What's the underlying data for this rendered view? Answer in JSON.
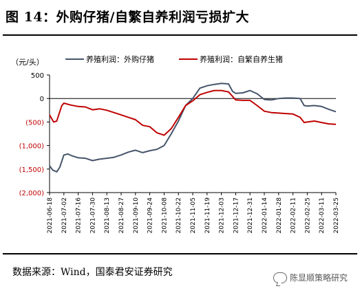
{
  "header": {
    "title": "图 14：外购仔猪/自繁自养利润亏损扩大"
  },
  "footer": {
    "source": "数据来源：Wind，国泰君安证券研究",
    "watermark": "陈显顺策略研究"
  },
  "chart_data": {
    "type": "line",
    "title": "",
    "ylabel": "（元/头）",
    "ylim": [
      -2000,
      500
    ],
    "yticks": [
      500,
      0,
      -500,
      -1000,
      -1500,
      -2000
    ],
    "ytick_labels": [
      "500",
      "0",
      "(500)",
      "(1,000)",
      "(1,500)",
      "(2,000)"
    ],
    "xticks": [
      "2021-06-18",
      "2021-07-02",
      "2021-07-16",
      "2021-07-30",
      "2021-08-13",
      "2021-08-27",
      "2021-09-10",
      "2021-09-24",
      "2021-10-08",
      "2021-10-22",
      "2021-11-05",
      "2021-11-19",
      "2021-12-03",
      "2021-12-17",
      "2021-12-31",
      "2022-01-14",
      "2022-01-28",
      "2022-02-11",
      "2022-02-25",
      "2022-03-11",
      "2022-03-25"
    ],
    "grid": false,
    "legend_position": "top",
    "series": [
      {
        "name": "养殖利润：外购仔猪",
        "color": "#44546A",
        "points": [
          [
            "2021-06-18",
            -1430
          ],
          [
            "2021-06-21",
            -1520
          ],
          [
            "2021-06-25",
            -1560
          ],
          [
            "2021-06-28",
            -1460
          ],
          [
            "2021-07-02",
            -1200
          ],
          [
            "2021-07-06",
            -1180
          ],
          [
            "2021-07-10",
            -1220
          ],
          [
            "2021-07-16",
            -1260
          ],
          [
            "2021-07-23",
            -1270
          ],
          [
            "2021-07-30",
            -1320
          ],
          [
            "2021-08-06",
            -1290
          ],
          [
            "2021-08-13",
            -1270
          ],
          [
            "2021-08-20",
            -1250
          ],
          [
            "2021-08-27",
            -1200
          ],
          [
            "2021-09-03",
            -1140
          ],
          [
            "2021-09-10",
            -1100
          ],
          [
            "2021-09-17",
            -1150
          ],
          [
            "2021-09-24",
            -1110
          ],
          [
            "2021-10-01",
            -1080
          ],
          [
            "2021-10-08",
            -1000
          ],
          [
            "2021-10-15",
            -750
          ],
          [
            "2021-10-22",
            -480
          ],
          [
            "2021-10-29",
            -150
          ],
          [
            "2021-11-05",
            0
          ],
          [
            "2021-11-12",
            220
          ],
          [
            "2021-11-19",
            270
          ],
          [
            "2021-11-26",
            300
          ],
          [
            "2021-12-03",
            320
          ],
          [
            "2021-12-10",
            310
          ],
          [
            "2021-12-14",
            150
          ],
          [
            "2021-12-17",
            110
          ],
          [
            "2021-12-24",
            120
          ],
          [
            "2021-12-31",
            170
          ],
          [
            "2022-01-07",
            100
          ],
          [
            "2022-01-14",
            -20
          ],
          [
            "2022-01-21",
            -30
          ],
          [
            "2022-01-28",
            0
          ],
          [
            "2022-02-04",
            10
          ],
          [
            "2022-02-11",
            10
          ],
          [
            "2022-02-18",
            0
          ],
          [
            "2022-02-22",
            -150
          ],
          [
            "2022-02-25",
            -160
          ],
          [
            "2022-03-04",
            -150
          ],
          [
            "2022-03-11",
            -170
          ],
          [
            "2022-03-18",
            -230
          ],
          [
            "2022-03-25",
            -280
          ]
        ]
      },
      {
        "name": "养殖利润：自繁自养生猪",
        "color": "#C00000",
        "points": [
          [
            "2021-06-18",
            -350
          ],
          [
            "2021-06-22",
            -500
          ],
          [
            "2021-06-25",
            -480
          ],
          [
            "2021-06-30",
            -150
          ],
          [
            "2021-07-02",
            -100
          ],
          [
            "2021-07-09",
            -140
          ],
          [
            "2021-07-16",
            -170
          ],
          [
            "2021-07-23",
            -180
          ],
          [
            "2021-07-30",
            -240
          ],
          [
            "2021-08-06",
            -220
          ],
          [
            "2021-08-13",
            -250
          ],
          [
            "2021-08-20",
            -300
          ],
          [
            "2021-08-27",
            -350
          ],
          [
            "2021-09-03",
            -400
          ],
          [
            "2021-09-10",
            -450
          ],
          [
            "2021-09-17",
            -570
          ],
          [
            "2021-09-24",
            -600
          ],
          [
            "2021-10-01",
            -730
          ],
          [
            "2021-10-08",
            -780
          ],
          [
            "2021-10-15",
            -640
          ],
          [
            "2021-10-22",
            -400
          ],
          [
            "2021-10-29",
            -150
          ],
          [
            "2021-11-05",
            -50
          ],
          [
            "2021-11-12",
            80
          ],
          [
            "2021-11-19",
            130
          ],
          [
            "2021-11-26",
            170
          ],
          [
            "2021-12-03",
            170
          ],
          [
            "2021-12-10",
            140
          ],
          [
            "2021-12-17",
            -30
          ],
          [
            "2021-12-24",
            -40
          ],
          [
            "2021-12-31",
            -40
          ],
          [
            "2022-01-07",
            -150
          ],
          [
            "2022-01-14",
            -270
          ],
          [
            "2022-01-21",
            -300
          ],
          [
            "2022-01-28",
            -310
          ],
          [
            "2022-02-04",
            -320
          ],
          [
            "2022-02-11",
            -330
          ],
          [
            "2022-02-18",
            -400
          ],
          [
            "2022-02-22",
            -510
          ],
          [
            "2022-02-25",
            -500
          ],
          [
            "2022-03-04",
            -480
          ],
          [
            "2022-03-11",
            -510
          ],
          [
            "2022-03-18",
            -540
          ],
          [
            "2022-03-25",
            -550
          ]
        ]
      }
    ]
  }
}
